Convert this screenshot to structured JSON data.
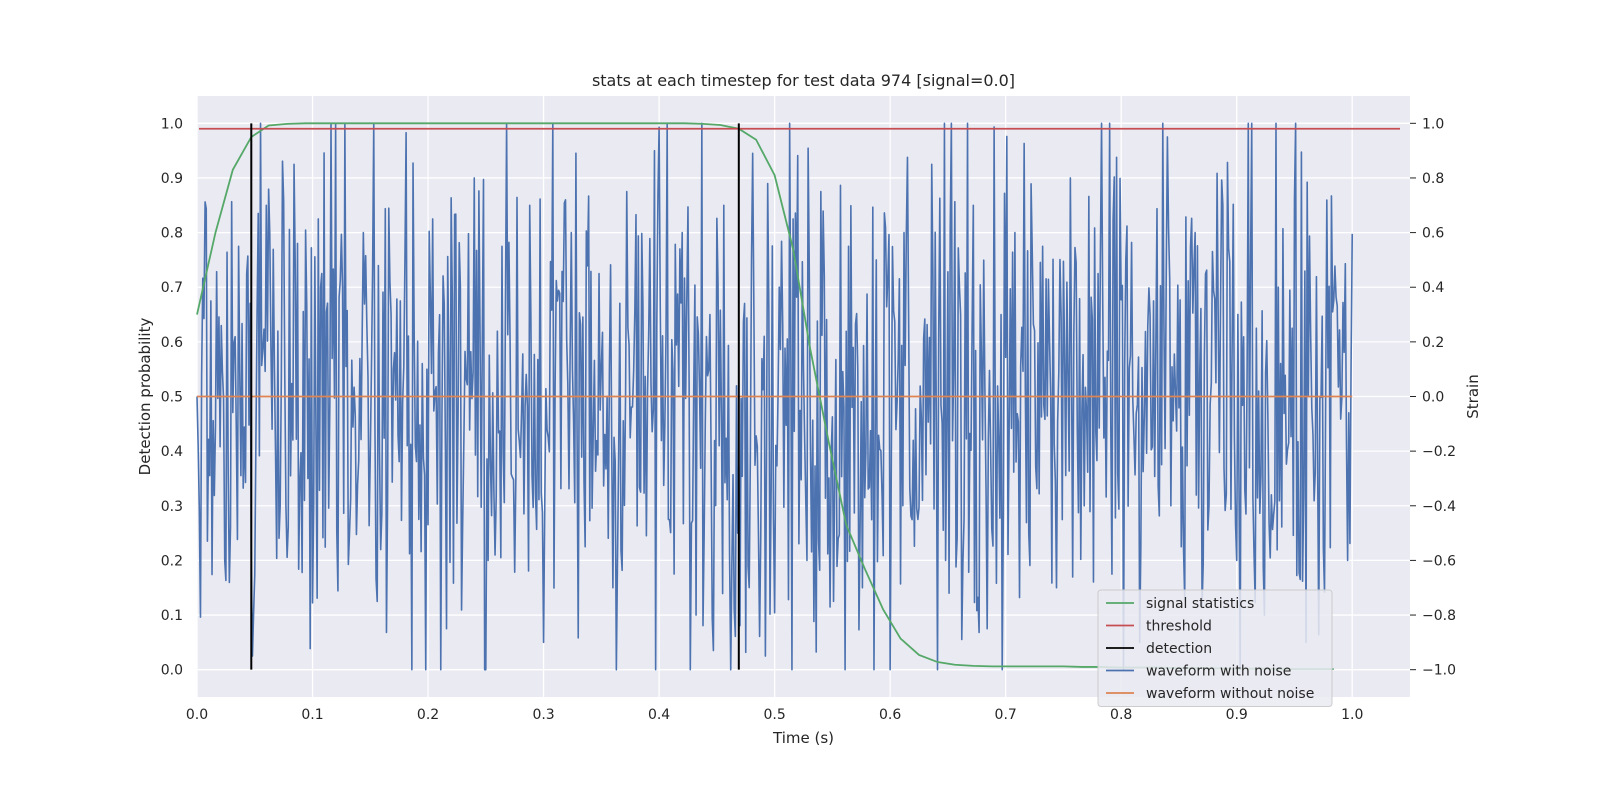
{
  "chart_data": {
    "type": "line",
    "title": "stats at each timestep for test data 974 [signal=0.0]",
    "xlabel": "Time (s)",
    "ylabel_left": "Detection probability",
    "ylabel_right": "Strain",
    "xlim": [
      0.0,
      1.05
    ],
    "ylim_left": [
      -0.05,
      1.05
    ],
    "ylim_right": [
      -1.1,
      1.1
    ],
    "x_ticks": [
      "0.0",
      "0.1",
      "0.2",
      "0.3",
      "0.4",
      "0.5",
      "0.6",
      "0.7",
      "0.8",
      "0.9",
      "1.0"
    ],
    "y_left_ticks": [
      "0.0",
      "0.1",
      "0.2",
      "0.3",
      "0.4",
      "0.5",
      "0.6",
      "0.7",
      "0.8",
      "0.9",
      "1.0"
    ],
    "y_right_ticks": [
      "−1.0",
      "−0.8",
      "−0.6",
      "−0.4",
      "−0.2",
      "0.0",
      "0.2",
      "0.4",
      "0.6",
      "0.8",
      "1.0"
    ],
    "grid": true,
    "legend_position": "lower-right",
    "legend": [
      "signal statistics",
      "threshold",
      "detection",
      "waveform with noise",
      "waveform without noise"
    ],
    "colors": {
      "signal statistics": "#55a868",
      "threshold": "#c44e52",
      "detection": "#000000",
      "waveform with noise": "#4c72b0",
      "waveform without noise": "#dd8452",
      "background": "#eaeaf2",
      "grid": "#ffffff"
    },
    "series": [
      {
        "name": "signal statistics",
        "axis": "left",
        "x": [
          0.0,
          0.016,
          0.031,
          0.047,
          0.062,
          0.078,
          0.094,
          0.109,
          0.125,
          0.141,
          0.156,
          0.172,
          0.188,
          0.203,
          0.219,
          0.234,
          0.25,
          0.266,
          0.281,
          0.297,
          0.312,
          0.328,
          0.344,
          0.359,
          0.375,
          0.391,
          0.406,
          0.422,
          0.438,
          0.453,
          0.469,
          0.484,
          0.5,
          0.516,
          0.531,
          0.547,
          0.562,
          0.578,
          0.594,
          0.609,
          0.625,
          0.641,
          0.656,
          0.672,
          0.688,
          0.703,
          0.719,
          0.734,
          0.75,
          0.766,
          0.781,
          0.797,
          0.812,
          0.828,
          0.844,
          0.859,
          0.875,
          0.891,
          0.906,
          0.922,
          0.938,
          0.953,
          0.969,
          0.984
        ],
        "y": [
          0.65,
          0.8,
          0.915,
          0.975,
          0.996,
          0.999,
          1.0,
          1.0,
          1.0,
          1.0,
          1.0,
          1.0,
          1.0,
          1.0,
          1.0,
          1.0,
          1.0,
          1.0,
          1.0,
          1.0,
          1.0,
          1.0,
          1.0,
          1.0,
          1.0,
          1.0,
          1.0,
          1.0,
          0.999,
          0.997,
          0.99,
          0.97,
          0.905,
          0.77,
          0.585,
          0.415,
          0.265,
          0.185,
          0.11,
          0.057,
          0.027,
          0.014,
          0.009,
          0.007,
          0.006,
          0.006,
          0.006,
          0.006,
          0.006,
          0.005,
          0.005,
          0.004,
          0.004,
          0.004,
          0.003,
          0.003,
          0.003,
          0.002,
          0.002,
          0.002,
          0.001,
          0.001,
          0.001,
          0.001
        ]
      },
      {
        "name": "threshold",
        "axis": "left",
        "x": [
          0.0,
          1.0
        ],
        "y": [
          0.99,
          0.99
        ]
      },
      {
        "name": "detection",
        "axis": "left",
        "x": [
          0.047,
          0.469
        ],
        "y_range": [
          0.0,
          1.0
        ]
      },
      {
        "name": "waveform with noise",
        "axis": "right",
        "x_range": [
          0.0,
          1.0
        ],
        "sample_count": 1001,
        "summary": "noise around 0.0 strain, extrema approx 1.0 (t=0.1) and -1.0 (t=0.7)",
        "y_sketch": [
          0.0,
          0.35,
          -0.6,
          0.55,
          -0.95,
          0.7,
          -0.4,
          0.85,
          -0.3,
          0.45,
          1.0,
          -0.5,
          0.6,
          -0.75,
          0.3,
          0.5,
          -0.45,
          0.65,
          -0.85,
          0.4,
          0.8,
          -0.6,
          0.55,
          -0.3,
          0.7,
          -0.9,
          0.35,
          0.6,
          -0.55,
          0.45,
          -0.7,
          0.75,
          -0.35,
          0.9,
          -0.45,
          0.6,
          -0.8,
          0.3,
          0.7,
          -0.5,
          0.5,
          -0.95,
          0.4,
          0.65,
          -0.6,
          0.75,
          -0.3,
          0.55,
          -0.7,
          0.5,
          -1.0,
          0.6,
          -0.45,
          0.85,
          -0.6,
          0.4,
          0.7,
          -0.85,
          0.3,
          0.6,
          -0.5,
          0.55,
          -0.7,
          0.8,
          -0.4,
          0.45,
          -0.65,
          0.5,
          -0.9,
          0.35,
          0.95,
          -0.55,
          0.6,
          -0.4,
          0.7,
          -0.6,
          0.5,
          -0.8,
          0.4,
          0.25,
          -0.9
        ]
      },
      {
        "name": "waveform without noise",
        "axis": "right",
        "x": [
          0.0,
          1.0
        ],
        "y": [
          0.0,
          0.0
        ]
      }
    ]
  }
}
